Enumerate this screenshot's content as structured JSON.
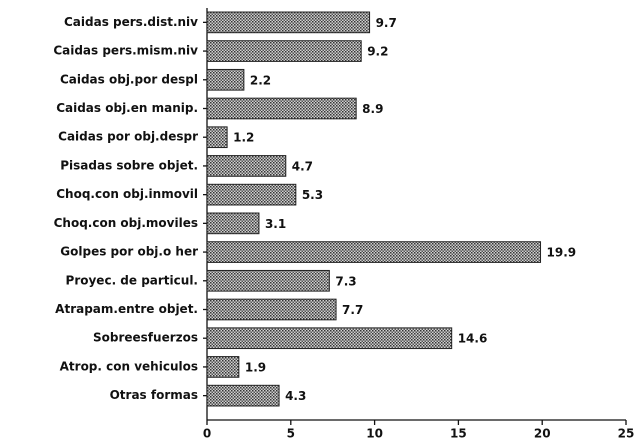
{
  "chart_data": {
    "type": "bar",
    "orientation": "horizontal",
    "categories": [
      "Caidas pers.dist.niv",
      "Caidas pers.mism.niv",
      "Caidas obj.por despl",
      "Caidas obj.en manip.",
      "Caidas por obj.despr",
      "Pisadas sobre objet.",
      "Choq.con obj.inmovil",
      "Choq.con obj.moviles",
      "Golpes por obj.o her",
      "Proyec. de particul.",
      "Atrapam.entre objet.",
      "Sobreesfuerzos",
      "Atrop. con vehiculos",
      "Otras formas"
    ],
    "values": [
      9.7,
      9.2,
      2.2,
      8.9,
      1.2,
      4.7,
      5.3,
      3.1,
      19.9,
      7.3,
      7.7,
      14.6,
      1.9,
      4.3
    ],
    "color": "#8a8a8a",
    "xlim": [
      0,
      25
    ],
    "xticks": [
      0,
      5,
      10,
      15,
      20,
      25
    ]
  }
}
